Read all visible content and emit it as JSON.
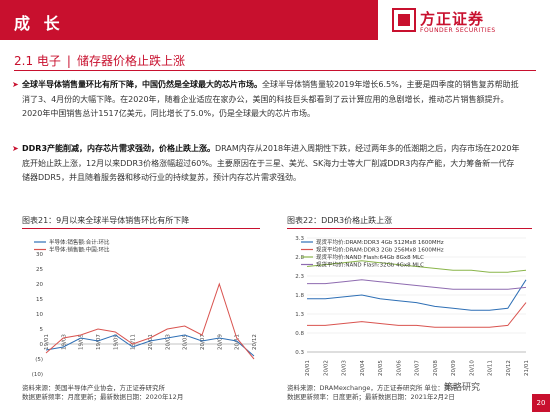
{
  "header": {
    "title": "成 长"
  },
  "logo": {
    "cn": "方正证券",
    "en": "FOUNDER SECURITIES"
  },
  "section": {
    "number": "2.1 电子",
    "subtitle": "储存器价格止跌上涨"
  },
  "paragraphs": [
    {
      "bold": "全球半导体销售量环比有所下降，中国仍然是全球最大的芯片市场。",
      "text": "全球半导体销售量较2019年增长6.5%，主要是四季度的销售复苏帮助抵消了3、4月份的大幅下降。在2020年，随着企业适应在家办公，美国的科技巨头都看到了云计算应用的急剧增长，推动芯片销售额提升。2020年中国销售总计1517亿美元，同比增长了5.0%，仍是全球最大的芯片市场。"
    },
    {
      "bold": "DDR3产能削减，内存芯片需求强劲，价格止跌上涨。",
      "text": "DRAM内存从2018年进入周期性下跌，经过两年多的低潮期之后，内存市场在2020年底开始止跌上涨，12月以来DDR3价格涨幅超过60%。主要原因在于三星、美光、SK海力士等大厂削减DDR3内存产能，大力筹备新一代存储器DDR5，并且随着服务器和移动行业的持续复苏，预计内存芯片需求强劲。"
    }
  ],
  "figure21": {
    "title": "图表21：9月以来全球半导体销售环比有所下降",
    "source": "资料来源：美国半导体产业协会，方正证券研究所\n数据更新频率：月度更新；最新数据日期：2020年12月",
    "chart_data": {
      "type": "line",
      "ylim": [
        -10,
        30
      ],
      "yticks": [
        "30",
        "25",
        "20",
        "15",
        "10",
        "5",
        "0",
        "(5)",
        "(10)"
      ],
      "categories": [
        "19/01",
        "19/03",
        "19/05",
        "19/07",
        "19/09",
        "19/11",
        "20/01",
        "20/03",
        "20/05",
        "20/07",
        "20/09",
        "20/11",
        "20/12"
      ],
      "series": [
        {
          "name": "半导体:销售额:合计:环比",
          "color": "#2e6fb5",
          "values": [
            -2,
            -1,
            2,
            1,
            3,
            -1,
            1,
            2,
            3,
            1,
            2,
            1,
            -4
          ]
        },
        {
          "name": "半导体:销售额:中国:环比",
          "color": "#d9534f",
          "values": [
            -3,
            2,
            3,
            5,
            4,
            0,
            2,
            5,
            6,
            3,
            20,
            2,
            -5
          ]
        }
      ]
    }
  },
  "figure22": {
    "title": "图表22：DDR3价格止跌上涨",
    "source": "资料来源：DRAMexchange，方正证券研究所 单位：美元\n数据更新频率：日度更新；最新数据日期：2021年2月2日",
    "chart_data": {
      "type": "line",
      "ylim": [
        0.3,
        3.3
      ],
      "yticks": [
        "3.3",
        "2.8",
        "2.3",
        "1.8",
        "1.3",
        "0.8",
        "0.3"
      ],
      "categories": [
        "20/01",
        "20/02",
        "20/03",
        "20/04",
        "20/05",
        "20/06",
        "20/07",
        "20/08",
        "20/09",
        "20/10",
        "20/11",
        "20/12",
        "21/01"
      ],
      "series": [
        {
          "name": "现货平均价:DRAM:DDR3 4Gb 512Mx8 1600MHz",
          "color": "#2e6fb5",
          "values": [
            1.7,
            1.7,
            1.75,
            1.8,
            1.7,
            1.65,
            1.6,
            1.5,
            1.45,
            1.4,
            1.4,
            1.45,
            2.2
          ]
        },
        {
          "name": "现货平均价:DRAM:DDR3 2Gb 256Mx8 1600MHz",
          "color": "#d9534f",
          "values": [
            1.0,
            1.0,
            1.05,
            1.1,
            1.05,
            1.0,
            1.0,
            0.95,
            0.95,
            0.95,
            0.95,
            1.0,
            1.6
          ]
        },
        {
          "name": "现货平均价:NAND Flash:64Gb 8Gx8 MLC",
          "color": "#8ab54a",
          "values": [
            2.55,
            2.6,
            2.65,
            2.7,
            2.65,
            2.6,
            2.55,
            2.5,
            2.45,
            2.45,
            2.4,
            2.4,
            2.45
          ]
        },
        {
          "name": "现货平均价:NAND Flash:32Gb 4Gx8 MLC",
          "color": "#8e6bb0",
          "values": [
            2.1,
            2.1,
            2.15,
            2.2,
            2.15,
            2.1,
            2.05,
            2.0,
            1.95,
            1.95,
            1.95,
            1.95,
            2.0
          ]
        }
      ]
    }
  },
  "footer": {
    "wechat": "策略研究",
    "page": "20"
  }
}
